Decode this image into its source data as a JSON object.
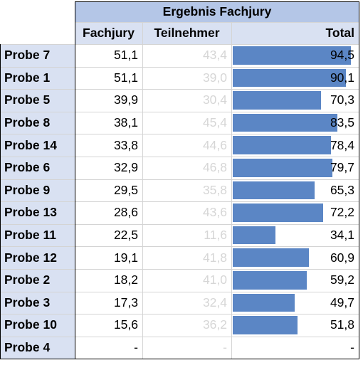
{
  "table": {
    "title": "Ergebnis Fachjury",
    "headers": [
      "Fachjury",
      "Teilnehmer",
      "Total"
    ],
    "bar_color": "#5b86c5",
    "header_color": "#d9e1f2",
    "title_color": "#b4c6e7",
    "total_max": 100,
    "rows": [
      {
        "label": "Probe 7",
        "fachjury": "51,1",
        "teilnehmer": "43,4",
        "total": "94,5",
        "total_value": 94.5
      },
      {
        "label": "Probe 1",
        "fachjury": "51,1",
        "teilnehmer": "39,0",
        "total": "90,1",
        "total_value": 90.1
      },
      {
        "label": "Probe 5",
        "fachjury": "39,9",
        "teilnehmer": "30,4",
        "total": "70,3",
        "total_value": 70.3
      },
      {
        "label": "Probe 8",
        "fachjury": "38,1",
        "teilnehmer": "45,4",
        "total": "83,5",
        "total_value": 83.5
      },
      {
        "label": "Probe 14",
        "fachjury": "33,8",
        "teilnehmer": "44,6",
        "total": "78,4",
        "total_value": 78.4
      },
      {
        "label": "Probe 6",
        "fachjury": "32,9",
        "teilnehmer": "46,8",
        "total": "79,7",
        "total_value": 79.7
      },
      {
        "label": "Probe 9",
        "fachjury": "29,5",
        "teilnehmer": "35,8",
        "total": "65,3",
        "total_value": 65.3
      },
      {
        "label": "Probe 13",
        "fachjury": "28,6",
        "teilnehmer": "43,6",
        "total": "72,2",
        "total_value": 72.2
      },
      {
        "label": "Probe 11",
        "fachjury": "22,5",
        "teilnehmer": "11,6",
        "total": "34,1",
        "total_value": 34.1
      },
      {
        "label": "Probe 12",
        "fachjury": "19,1",
        "teilnehmer": "41,8",
        "total": "60,9",
        "total_value": 60.9
      },
      {
        "label": "Probe 2",
        "fachjury": "18,2",
        "teilnehmer": "41,0",
        "total": "59,2",
        "total_value": 59.2
      },
      {
        "label": "Probe 3",
        "fachjury": "17,3",
        "teilnehmer": "32,4",
        "total": "49,7",
        "total_value": 49.7
      },
      {
        "label": "Probe 10",
        "fachjury": "15,6",
        "teilnehmer": "36,2",
        "total": "51,8",
        "total_value": 51.8
      },
      {
        "label": "Probe 4",
        "fachjury": "-",
        "teilnehmer": "-",
        "total": "-",
        "total_value": 0
      }
    ]
  }
}
